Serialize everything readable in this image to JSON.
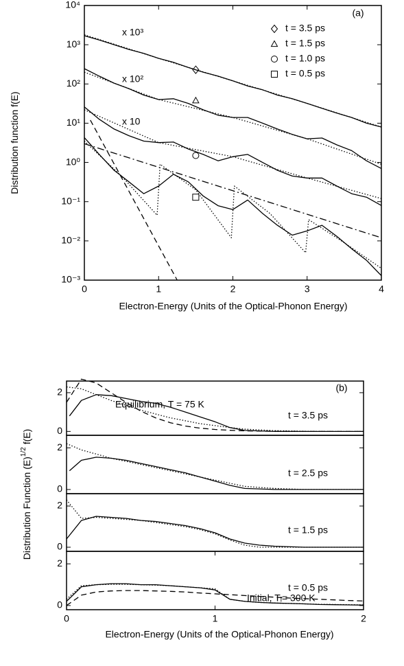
{
  "chart_data": [
    {
      "type": "line",
      "log_y": true,
      "panel_label": "(a)",
      "xlabel": "Electron-Energy  (Units of the Optical-Phonon Energy)",
      "ylabel": [
        "Distribution function f(E)"
      ],
      "xlim": [
        0,
        4
      ],
      "xticks": [
        0,
        1,
        2,
        3,
        4
      ],
      "ylim": [
        0.001,
        10000
      ],
      "yticks": [
        {
          "value": 0.001,
          "label": "10⁻³"
        },
        {
          "value": 0.01,
          "label": "10⁻²"
        },
        {
          "value": 0.1,
          "label": "10⁻¹"
        },
        {
          "value": 1,
          "label": "10⁰"
        },
        {
          "value": 10,
          "label": "10¹"
        },
        {
          "value": 100,
          "label": "10²"
        },
        {
          "value": 1000,
          "label": "10³"
        },
        {
          "value": 10000,
          "label": "10⁴"
        }
      ],
      "annotations": [
        "x 10³",
        "x 10²",
        "x 10"
      ],
      "series": [
        {
          "name": "t = 3.5 ps",
          "marker": "diamond",
          "marker_point": {
            "x": 1.5,
            "y": 230
          },
          "dash": "solid",
          "color": "#000",
          "x": [
            0,
            0.2,
            0.4,
            0.6,
            0.8,
            1.0,
            1.2,
            1.4,
            1.6,
            1.8,
            2.0,
            2.2,
            2.4,
            2.6,
            2.8,
            3.0,
            3.2,
            3.4,
            3.6,
            3.8,
            4.0
          ],
          "values": [
            1700,
            1320,
            1000,
            760,
            600,
            450,
            355,
            263,
            200,
            158,
            120,
            89,
            71,
            52,
            42,
            32,
            24,
            18,
            14,
            10,
            8
          ]
        },
        {
          "name": "t = 1.5 ps",
          "marker": "triangle",
          "marker_point": {
            "x": 1.5,
            "y": 38
          },
          "dash": "solid",
          "color": "#000",
          "x": [
            0,
            0.2,
            0.4,
            0.6,
            0.8,
            1.0,
            1.2,
            1.4,
            1.6,
            1.8,
            2.0,
            2.2,
            2.4,
            2.6,
            2.8,
            3.0,
            3.2,
            3.4,
            3.6,
            3.8,
            4.0
          ],
          "values": [
            245,
            158,
            105,
            76,
            52,
            40,
            42,
            32,
            22,
            16,
            14,
            14,
            10,
            7.1,
            5.2,
            4,
            4.2,
            2.8,
            2,
            1.1,
            0.7
          ]
        },
        {
          "name": "t = 1.0 ps",
          "marker": "circle",
          "marker_point": {
            "x": 1.5,
            "y": 1.5
          },
          "dash": "solid",
          "color": "#000",
          "x": [
            0,
            0.2,
            0.4,
            0.6,
            0.8,
            1.0,
            1.2,
            1.4,
            1.6,
            1.8,
            2.0,
            2.2,
            2.4,
            2.6,
            2.8,
            3.0,
            3.2,
            3.4,
            3.6,
            3.8,
            4.0
          ],
          "values": [
            26,
            12.6,
            7.1,
            4.8,
            3.5,
            3.2,
            3.3,
            2.2,
            1.6,
            1.1,
            1.4,
            1.6,
            1,
            0.63,
            0.45,
            0.4,
            0.4,
            0.25,
            0.16,
            0.13,
            0.08
          ]
        },
        {
          "name": "t = 0.5 ps",
          "marker": "square",
          "marker_point": {
            "x": 1.5,
            "y": 0.13
          },
          "dash": "solid",
          "color": "#000",
          "x": [
            0,
            0.2,
            0.4,
            0.6,
            0.8,
            1.0,
            1.2,
            1.4,
            1.6,
            1.8,
            2.0,
            2.2,
            2.4,
            2.6,
            2.8,
            3.0,
            3.2,
            3.4,
            3.6,
            3.8,
            4.0
          ],
          "values": [
            4.3,
            1.6,
            0.63,
            0.32,
            0.16,
            0.25,
            0.5,
            0.32,
            0.14,
            0.079,
            0.063,
            0.11,
            0.05,
            0.025,
            0.014,
            0.018,
            0.025,
            0.013,
            0.0063,
            0.0032,
            0.0013
          ]
        },
        {
          "dash": "dotted",
          "color": "#000",
          "x": [
            0,
            1,
            2,
            3,
            4
          ],
          "values": [
            1800,
            450,
            120,
            32,
            8
          ]
        },
        {
          "dash": "dotted",
          "color": "#000",
          "x": [
            0,
            1,
            2,
            3,
            4
          ],
          "values": [
            200,
            40,
            14,
            4,
            0.9
          ]
        },
        {
          "dash": "dotted",
          "color": "#000",
          "x": [
            0,
            1,
            2,
            3,
            4
          ],
          "values": [
            22,
            3.2,
            1.4,
            0.4,
            0.12
          ]
        },
        {
          "dash": "dotted",
          "color": "#000",
          "x": [
            0,
            0.5,
            0.98,
            1.02,
            1.5,
            1.98,
            2.02,
            2.5,
            2.98,
            3.02,
            3.5,
            4
          ],
          "values": [
            3.5,
            0.45,
            0.045,
            0.9,
            0.2,
            0.012,
            0.25,
            0.05,
            0.005,
            0.035,
            0.009,
            0.002
          ]
        },
        {
          "dash": "dashed",
          "color": "#000",
          "x": [
            0.08,
            1.25
          ],
          "values": [
            12,
            0.001
          ]
        },
        {
          "dash": "dashdot",
          "color": "#000",
          "x": [
            0,
            4
          ],
          "values": [
            3,
            0.012
          ]
        }
      ]
    },
    {
      "type": "line",
      "panel_label": "(b)",
      "label": "t = 3.5 ps",
      "ylabel": [
        "Distribution Function (E)",
        "1/2",
        " f(E)"
      ],
      "xlim": [
        0,
        2
      ],
      "ylim": [
        -0.2,
        2.6
      ],
      "yticks": [
        0,
        2
      ],
      "annotations": [
        "Equilibrium, T = 75 K"
      ],
      "series": [
        {
          "dash": "solid",
          "color": "#000",
          "x": [
            0.02,
            0.1,
            0.2,
            0.3,
            0.4,
            0.5,
            0.6,
            0.7,
            0.8,
            0.9,
            1.0,
            1.1,
            1.2,
            1.4,
            1.6,
            1.8,
            2.0
          ],
          "values": [
            0.8,
            1.6,
            1.9,
            1.85,
            1.7,
            1.55,
            1.45,
            1.25,
            1.0,
            0.75,
            0.5,
            0.2,
            0.05,
            0,
            0,
            0,
            0
          ]
        },
        {
          "dash": "dotted",
          "color": "#000",
          "x": [
            0,
            0.1,
            0.2,
            0.3,
            0.4,
            0.5,
            0.6,
            0.7,
            0.8,
            0.9,
            1.0,
            1.1,
            1.2,
            1.4,
            1.6,
            1.8,
            2.0
          ],
          "values": [
            2.3,
            2.2,
            1.9,
            1.6,
            1.35,
            1.1,
            0.9,
            0.7,
            0.55,
            0.4,
            0.3,
            0.2,
            0.12,
            0.04,
            0.01,
            0,
            0
          ]
        },
        {
          "dash": "dashed",
          "color": "#000",
          "x": [
            0,
            0.1,
            0.2,
            0.3,
            0.4,
            0.5,
            0.6,
            0.7,
            0.8,
            0.9,
            1.0,
            1.1,
            1.2,
            1.4,
            1.6,
            1.8,
            2.0
          ],
          "values": [
            1.5,
            2.7,
            2.5,
            2.0,
            1.5,
            1.05,
            0.7,
            0.45,
            0.28,
            0.17,
            0.1,
            0.06,
            0.03,
            0.01,
            0,
            0,
            0
          ]
        }
      ]
    },
    {
      "type": "line",
      "label": "t = 2.5 ps",
      "xlim": [
        0,
        2
      ],
      "ylim": [
        -0.2,
        2.6
      ],
      "yticks": [
        0,
        2
      ],
      "series": [
        {
          "dash": "solid",
          "color": "#000",
          "x": [
            0.02,
            0.1,
            0.2,
            0.3,
            0.4,
            0.5,
            0.6,
            0.7,
            0.8,
            0.9,
            1.0,
            1.1,
            1.2,
            1.4,
            1.6,
            1.8,
            2.0
          ],
          "values": [
            0.9,
            1.4,
            1.55,
            1.5,
            1.4,
            1.25,
            1.1,
            0.95,
            0.8,
            0.6,
            0.4,
            0.2,
            0.05,
            0,
            0,
            0,
            0
          ]
        },
        {
          "dash": "dotted",
          "color": "#000",
          "x": [
            0,
            0.1,
            0.2,
            0.3,
            0.4,
            0.5,
            0.6,
            0.7,
            0.8,
            0.9,
            1.0,
            1.1,
            1.2,
            1.4,
            1.6,
            1.8,
            2.0
          ],
          "values": [
            2.2,
            1.9,
            1.7,
            1.5,
            1.35,
            1.2,
            1.05,
            0.9,
            0.75,
            0.6,
            0.45,
            0.3,
            0.15,
            0.05,
            0,
            0,
            0
          ]
        }
      ]
    },
    {
      "type": "line",
      "label": "t = 1.5 ps",
      "xlim": [
        0,
        2
      ],
      "ylim": [
        -0.2,
        2.6
      ],
      "yticks": [
        0,
        2
      ],
      "series": [
        {
          "dash": "solid",
          "color": "#000",
          "x": [
            0,
            0.1,
            0.2,
            0.3,
            0.4,
            0.5,
            0.6,
            0.7,
            0.8,
            0.9,
            1.0,
            1.1,
            1.2,
            1.3,
            1.4,
            1.6,
            1.8,
            2.0
          ],
          "values": [
            0.4,
            1.3,
            1.5,
            1.45,
            1.4,
            1.3,
            1.25,
            1.15,
            1.05,
            0.9,
            0.7,
            0.4,
            0.2,
            0.1,
            0.05,
            0,
            0,
            0
          ]
        },
        {
          "dash": "dotted",
          "color": "#000",
          "x": [
            0,
            0.1,
            0.2,
            0.3,
            0.4,
            0.5,
            0.6,
            0.7,
            0.8,
            0.9,
            1.0,
            1.1,
            1.2,
            1.3,
            1.4,
            1.6,
            1.8,
            2.0
          ],
          "values": [
            2.3,
            1.4,
            1.45,
            1.4,
            1.35,
            1.3,
            1.2,
            1.1,
            1.0,
            0.85,
            0.65,
            0.35,
            0.1,
            0,
            0,
            0,
            0,
            0
          ]
        }
      ]
    },
    {
      "type": "line",
      "label": "t = 0.5 ps",
      "xlabel": "Electron-Energy  (Units of the Optical-Phonon Energy)",
      "xlim": [
        0,
        2
      ],
      "xticks": [
        0,
        1,
        2
      ],
      "ylim": [
        -0.2,
        2.6
      ],
      "yticks": [
        0,
        2
      ],
      "annotations": [
        "Initial, Tᵢ= 300 K"
      ],
      "series": [
        {
          "dash": "solid",
          "color": "#000",
          "x": [
            0,
            0.1,
            0.2,
            0.3,
            0.4,
            0.5,
            0.6,
            0.7,
            0.8,
            0.9,
            1.0,
            1.1,
            1.2,
            1.3,
            1.4,
            1.5,
            1.6,
            1.7,
            1.8,
            1.9,
            2.0
          ],
          "values": [
            0.2,
            0.9,
            1.0,
            1.05,
            1.05,
            1.0,
            1.0,
            0.95,
            0.9,
            0.85,
            0.75,
            0.3,
            0.2,
            0.15,
            0.12,
            0.1,
            0.08,
            0.05,
            0.04,
            0.03,
            0.02
          ]
        },
        {
          "dash": "dotted",
          "color": "#000",
          "x": [
            0,
            0.1,
            0.2,
            0.3,
            0.4,
            0.5,
            0.6,
            0.7,
            0.8,
            0.9,
            1.0,
            1.1,
            1.2,
            1.3,
            1.4,
            1.5,
            1.6,
            1.7,
            1.8,
            1.9,
            2.0
          ],
          "values": [
            0.3,
            0.95,
            1.0,
            1.02,
            1.02,
            1.0,
            0.98,
            0.95,
            0.9,
            0.85,
            0.8,
            0.3,
            0.2,
            0.15,
            0.12,
            0.1,
            0.08,
            0.06,
            0.05,
            0.04,
            0.03
          ]
        },
        {
          "dash": "dashed",
          "color": "#000",
          "x": [
            0,
            0.1,
            0.2,
            0.3,
            0.4,
            0.5,
            0.6,
            0.7,
            0.8,
            0.9,
            1.0,
            1.1,
            1.2,
            1.3,
            1.4,
            1.5,
            1.6,
            1.7,
            1.8,
            1.9,
            2.0
          ],
          "values": [
            0,
            0.5,
            0.65,
            0.7,
            0.72,
            0.72,
            0.7,
            0.68,
            0.65,
            0.6,
            0.56,
            0.52,
            0.48,
            0.44,
            0.4,
            0.36,
            0.33,
            0.3,
            0.27,
            0.24,
            0.22
          ]
        }
      ]
    }
  ]
}
